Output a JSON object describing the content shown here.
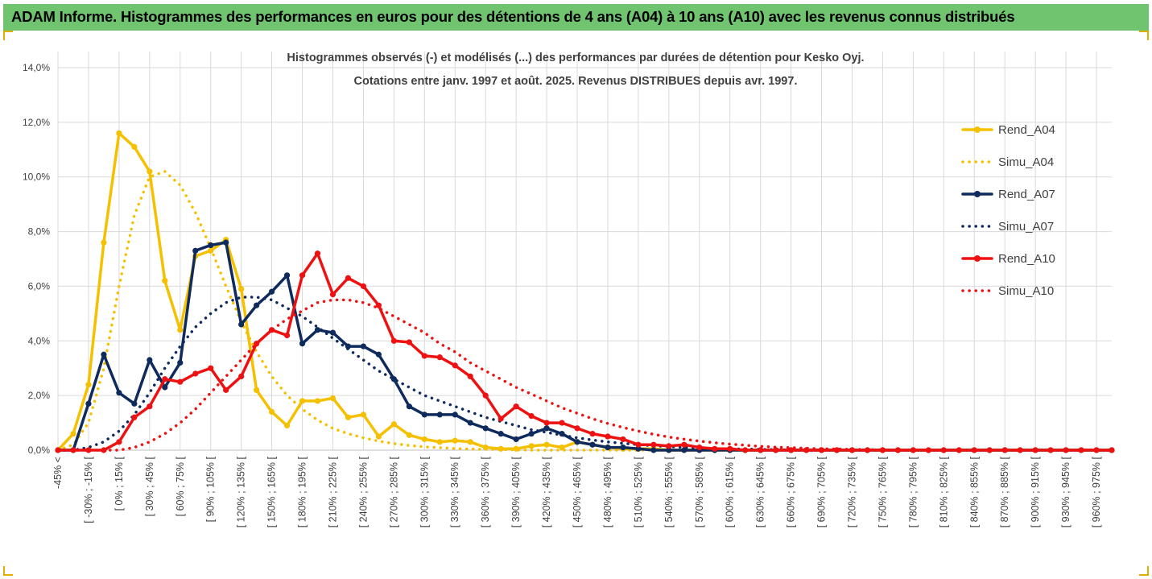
{
  "banner": {
    "title": "ADAM Informe. Histogrammes des performances en euros pour des détentions de 4 ans (A04) à 10 ans (A10) avec les revenus connus distribués"
  },
  "chart_data": {
    "type": "line",
    "title": "",
    "subtitle_lines": [
      "Histogrammes observés (-) et modélisés (...) des performances par durées de détention pour Kesko Oyj.",
      "Cotations entre janv. 1997 et août. 2025. Revenus DISTRIBUES depuis avr.  1997."
    ],
    "xlabel": "",
    "ylabel": "",
    "ylim": [
      0,
      14
    ],
    "y_ticks": [
      "0,0%",
      "2,0%",
      "4,0%",
      "6,0%",
      "8,0%",
      "10,0%",
      "12,0%",
      "14,0%"
    ],
    "x_tick_labels": [
      "-45% <",
      "[ -30% ; -15% [",
      "[ 0% ; 15% [",
      "[ 30% ; 45% [",
      "[ 60% ; 75% [",
      "[ 90% ; 105% [",
      "[ 120% ; 135% [",
      "[ 150% ; 165% [",
      "[ 180% ; 195% [",
      "[ 210% ; 225% [",
      "[ 240% ; 255% [",
      "[ 270% ; 285% [",
      "[ 300% ; 315% [",
      "[ 330% ; 345% [",
      "[ 360% ; 375% [",
      "[ 390% ; 405% [",
      "[ 420% ; 435% [",
      "[ 450% ; 465% [",
      "[ 480% ; 495% [",
      "[ 510% ; 525% [",
      "[ 540% ; 555% [",
      "[ 570% ; 585% [",
      "[ 600% ; 615% [",
      "[ 630% ; 645% [",
      "[ 660% ; 675% [",
      "[ 690% ; 705% [",
      "[ 720% ; 735% [",
      "[ 750% ; 765% [",
      "[ 780% ; 795% [",
      "[ 810% ; 825% [",
      "[ 840% ; 855% [",
      "[ 870% ; 885% [",
      "[ 900% ; 915% [",
      "[ 930% ; 945% [",
      "[ 960% ; 975% ["
    ],
    "n_bins": 70,
    "grid": "vertical and horizontal",
    "legend_position": "right",
    "series": [
      {
        "name": "Rend_A04",
        "color": "#f5c000",
        "style": "solid",
        "markers": true,
        "values": [
          0,
          0.6,
          2.4,
          7.6,
          11.6,
          11.1,
          10.2,
          6.2,
          4.4,
          7.1,
          7.3,
          7.7,
          5.9,
          2.2,
          1.4,
          0.9,
          1.8,
          1.8,
          1.9,
          1.2,
          1.3,
          0.5,
          0.95,
          0.55,
          0.4,
          0.3,
          0.35,
          0.3,
          0.1,
          0.05,
          0.05,
          0.15,
          0.2,
          0.1,
          0.3,
          0.2,
          0.1,
          0.05,
          0.05,
          0.05,
          0,
          0,
          0,
          0,
          0,
          0,
          0,
          0,
          0,
          0,
          0,
          0,
          0,
          0,
          0,
          0,
          0,
          0,
          0,
          0,
          0,
          0,
          0,
          0,
          0,
          0,
          0,
          0,
          0,
          0
        ]
      },
      {
        "name": "Simu_A04",
        "color": "#f5c000",
        "style": "dotted",
        "markers": false,
        "values": [
          0,
          0.2,
          1.0,
          3.0,
          6.0,
          8.6,
          10.0,
          10.2,
          9.7,
          8.7,
          7.4,
          6.0,
          4.7,
          3.6,
          2.7,
          2.0,
          1.5,
          1.1,
          0.8,
          0.6,
          0.45,
          0.33,
          0.24,
          0.17,
          0.12,
          0.09,
          0.06,
          0.04,
          0.03,
          0.02,
          0.01,
          0,
          0,
          0,
          0,
          0,
          0,
          0,
          0,
          0,
          0,
          0,
          0,
          0,
          0,
          0,
          0,
          0,
          0,
          0,
          0,
          0,
          0,
          0,
          0,
          0,
          0,
          0,
          0,
          0,
          0,
          0,
          0,
          0,
          0,
          0,
          0,
          0,
          0,
          0
        ]
      },
      {
        "name": "Rend_A07",
        "color": "#0f2a5c",
        "style": "solid",
        "markers": true,
        "values": [
          0,
          0,
          1.7,
          3.5,
          2.1,
          1.7,
          3.3,
          2.3,
          3.2,
          7.3,
          7.5,
          7.6,
          4.6,
          5.3,
          5.8,
          6.4,
          3.9,
          4.4,
          4.3,
          3.8,
          3.8,
          3.5,
          2.6,
          1.6,
          1.3,
          1.3,
          1.3,
          1.0,
          0.8,
          0.6,
          0.4,
          0.6,
          0.8,
          0.6,
          0.3,
          0.2,
          0.1,
          0.1,
          0.05,
          0,
          0,
          0,
          0,
          0,
          0,
          0,
          0,
          0,
          0,
          0,
          0,
          0,
          0,
          0,
          0,
          0,
          0,
          0,
          0,
          0,
          0,
          0,
          0,
          0,
          0,
          0,
          0,
          0,
          0,
          0
        ]
      },
      {
        "name": "Simu_A07",
        "color": "#0f2a5c",
        "style": "dotted",
        "markers": false,
        "values": [
          0,
          0,
          0.1,
          0.3,
          0.7,
          1.3,
          2.1,
          3.0,
          3.8,
          4.5,
          5.0,
          5.4,
          5.6,
          5.6,
          5.5,
          5.2,
          4.9,
          4.5,
          4.1,
          3.7,
          3.3,
          2.9,
          2.6,
          2.3,
          2.0,
          1.8,
          1.6,
          1.4,
          1.2,
          1.05,
          0.9,
          0.75,
          0.65,
          0.55,
          0.45,
          0.37,
          0.3,
          0.25,
          0.2,
          0.16,
          0.13,
          0.1,
          0.08,
          0.06,
          0.05,
          0.04,
          0.03,
          0.02,
          0.01,
          0,
          0,
          0,
          0,
          0,
          0,
          0,
          0,
          0,
          0,
          0,
          0,
          0,
          0,
          0,
          0,
          0,
          0,
          0,
          0,
          0
        ]
      },
      {
        "name": "Rend_A10",
        "color": "#ee1111",
        "style": "solid",
        "markers": true,
        "values": [
          0,
          0,
          0,
          0,
          0.3,
          1.2,
          1.6,
          2.6,
          2.5,
          2.8,
          3.0,
          2.2,
          2.7,
          3.9,
          4.4,
          4.2,
          6.4,
          7.2,
          5.7,
          6.3,
          6.0,
          5.3,
          4.0,
          3.95,
          3.45,
          3.4,
          3.1,
          2.7,
          2.0,
          1.15,
          1.6,
          1.25,
          1.0,
          1.0,
          0.8,
          0.6,
          0.5,
          0.4,
          0.2,
          0.2,
          0.15,
          0.2,
          0.1,
          0.05,
          0.05,
          0,
          0,
          0,
          0,
          0,
          0,
          0,
          0,
          0,
          0,
          0,
          0,
          0,
          0,
          0,
          0,
          0,
          0,
          0,
          0,
          0,
          0,
          0,
          0,
          0
        ]
      },
      {
        "name": "Simu_A10",
        "color": "#ee1111",
        "style": "dotted",
        "markers": false,
        "values": [
          0,
          0,
          0,
          0,
          0,
          0.1,
          0.3,
          0.6,
          1.0,
          1.5,
          2.1,
          2.7,
          3.3,
          3.9,
          4.4,
          4.8,
          5.1,
          5.4,
          5.5,
          5.5,
          5.4,
          5.2,
          4.9,
          4.6,
          4.3,
          3.9,
          3.6,
          3.2,
          2.9,
          2.6,
          2.3,
          2.05,
          1.8,
          1.55,
          1.35,
          1.15,
          0.98,
          0.83,
          0.7,
          0.58,
          0.48,
          0.4,
          0.33,
          0.27,
          0.22,
          0.18,
          0.14,
          0.11,
          0.09,
          0.07,
          0.05,
          0.04,
          0.03,
          0.02,
          0.01,
          0,
          0,
          0,
          0,
          0,
          0,
          0,
          0,
          0,
          0,
          0,
          0,
          0,
          0,
          0
        ]
      }
    ]
  }
}
